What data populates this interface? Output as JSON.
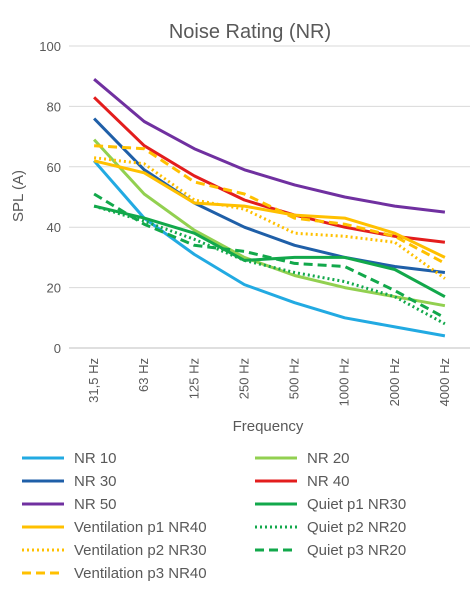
{
  "chart_data": {
    "type": "line",
    "title": "Noise Rating (NR)",
    "xlabel": "Frequency",
    "ylabel": "SPL (A)",
    "ylim": [
      0,
      100
    ],
    "yticks": [
      "0",
      "20",
      "40",
      "60",
      "80",
      "100"
    ],
    "categories": [
      "31,5 Hz",
      "63 Hz",
      "125 Hz",
      "250 Hz",
      "500 Hz",
      "1000 Hz",
      "2000 Hz",
      "4000 Hz"
    ],
    "grid": "horizontal",
    "legend_position": "bottom",
    "series": [
      {
        "name": "NR 10",
        "color": "#22aae2",
        "dash": "solid",
        "values": [
          62,
          43,
          31,
          21,
          15,
          10,
          7,
          4
        ]
      },
      {
        "name": "NR 20",
        "color": "#92d050",
        "dash": "solid",
        "values": [
          69,
          51,
          39,
          30,
          24,
          20,
          17,
          14
        ]
      },
      {
        "name": "NR 30",
        "color": "#1f5fa8",
        "dash": "solid",
        "values": [
          76,
          59,
          48,
          40,
          34,
          30,
          27,
          25
        ]
      },
      {
        "name": "NR 40",
        "color": "#e31d1d",
        "dash": "solid",
        "values": [
          83,
          67,
          57,
          49,
          44,
          40,
          37,
          35
        ]
      },
      {
        "name": "NR 50",
        "color": "#7030a0",
        "dash": "solid",
        "values": [
          89,
          75,
          66,
          59,
          54,
          50,
          47,
          45
        ]
      },
      {
        "name": "Quiet p1 NR30",
        "color": "#12a84b",
        "dash": "solid",
        "values": [
          47,
          43,
          38,
          29,
          30,
          30,
          26,
          17
        ]
      },
      {
        "name": "Ventilation p1 NR40",
        "color": "#ffc000",
        "dash": "solid",
        "values": [
          62,
          58,
          48,
          47,
          44,
          43,
          38,
          30
        ]
      },
      {
        "name": "Quiet p2 NR20",
        "color": "#12a84b",
        "dash": "dotted",
        "values": [
          47,
          42,
          36,
          29,
          25,
          22,
          17,
          8
        ]
      },
      {
        "name": "Ventilation p2 NR30",
        "color": "#ffc000",
        "dash": "dotted",
        "values": [
          63,
          61,
          49,
          46,
          38,
          37,
          35,
          23
        ]
      },
      {
        "name": "Quiet p3 NR20",
        "color": "#12a84b",
        "dash": "dashed",
        "values": [
          51,
          41,
          34,
          32,
          28,
          27,
          19,
          10
        ]
      },
      {
        "name": "Ventilation p3 NR40",
        "color": "#ffc000",
        "dash": "dashed",
        "values": [
          67,
          66,
          55,
          51,
          43,
          41,
          37,
          28
        ]
      }
    ]
  }
}
